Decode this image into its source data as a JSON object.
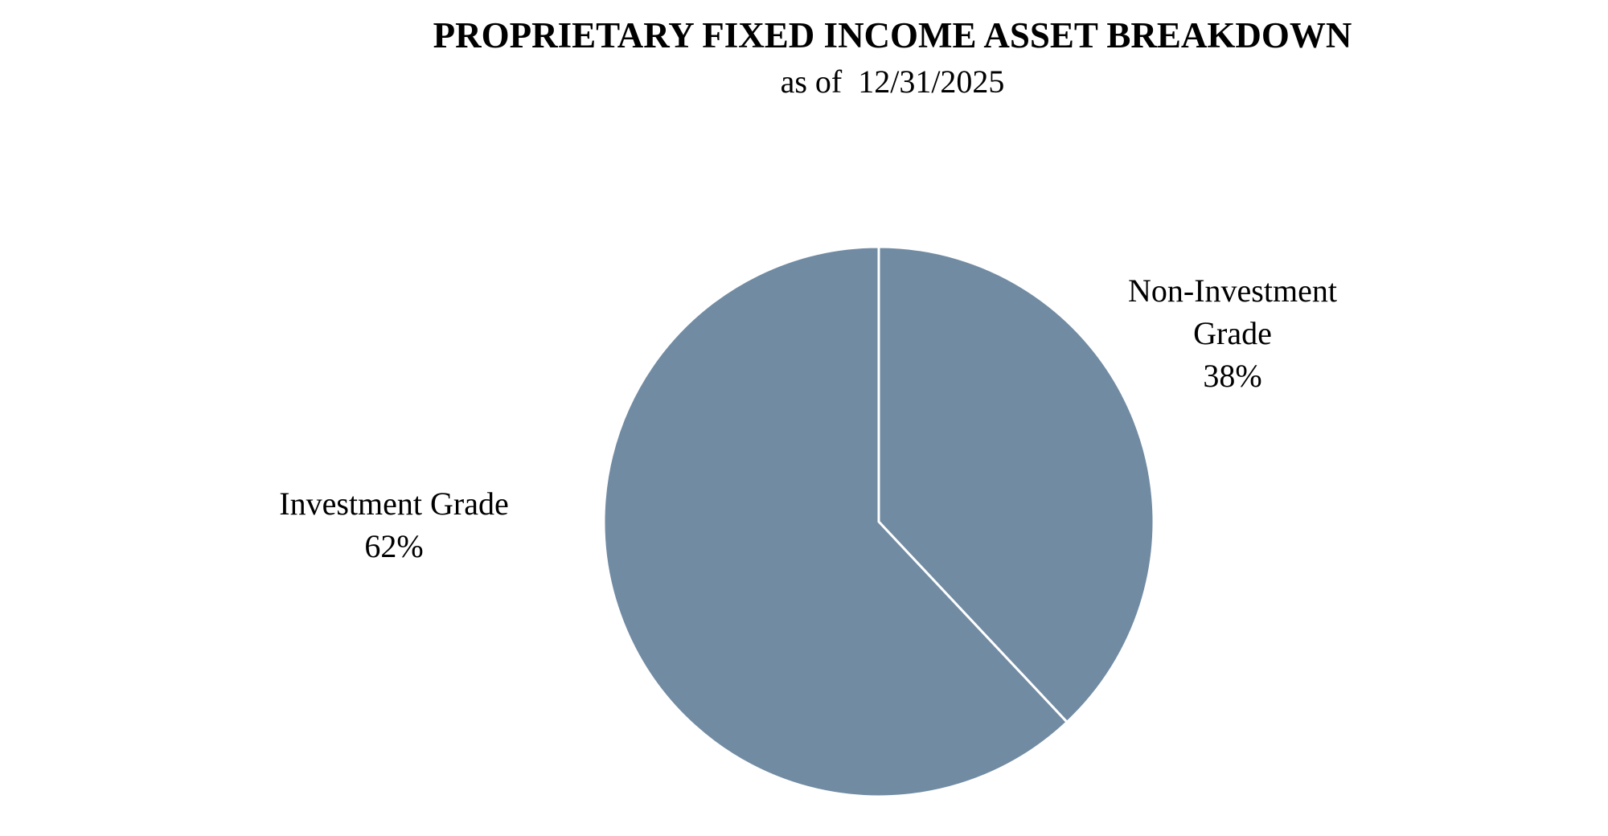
{
  "chart_data": {
    "type": "pie",
    "title": "PROPRIETARY FIXED INCOME ASSET BREAKDOWN",
    "subtitle": "as of  12/31/2025",
    "categories": [
      "Non-Investment Grade",
      "Investment Grade"
    ],
    "values": [
      38,
      62
    ],
    "value_labels": [
      "38%",
      "62%"
    ],
    "color": "#718ba3"
  }
}
